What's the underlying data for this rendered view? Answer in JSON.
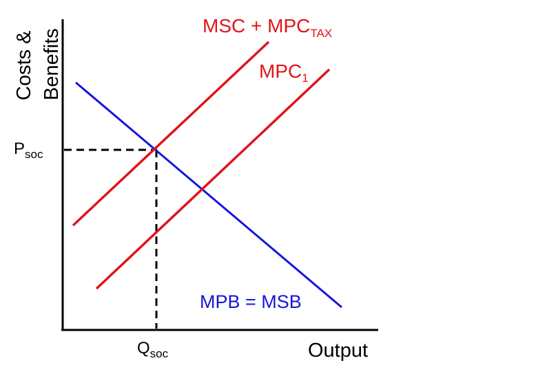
{
  "axes": {
    "y_label_line1": "Costs &",
    "y_label_line2": "Benefits",
    "x_label": "Output",
    "axis_color": "#000000"
  },
  "curves": {
    "msc_tax": {
      "label_main": "MSC + MPC",
      "label_sub": "TAX",
      "color": "#e0141a"
    },
    "mpc1": {
      "label_main": "MPC",
      "label_sub": "1",
      "color": "#e0141a"
    },
    "mpb_msb": {
      "label": "MPB = MSB",
      "color": "#1414e0"
    }
  },
  "equilibrium": {
    "price_main": "P",
    "price_sub": "soc",
    "quantity_main": "Q",
    "quantity_sub": "soc",
    "guide_color": "#000000"
  }
}
